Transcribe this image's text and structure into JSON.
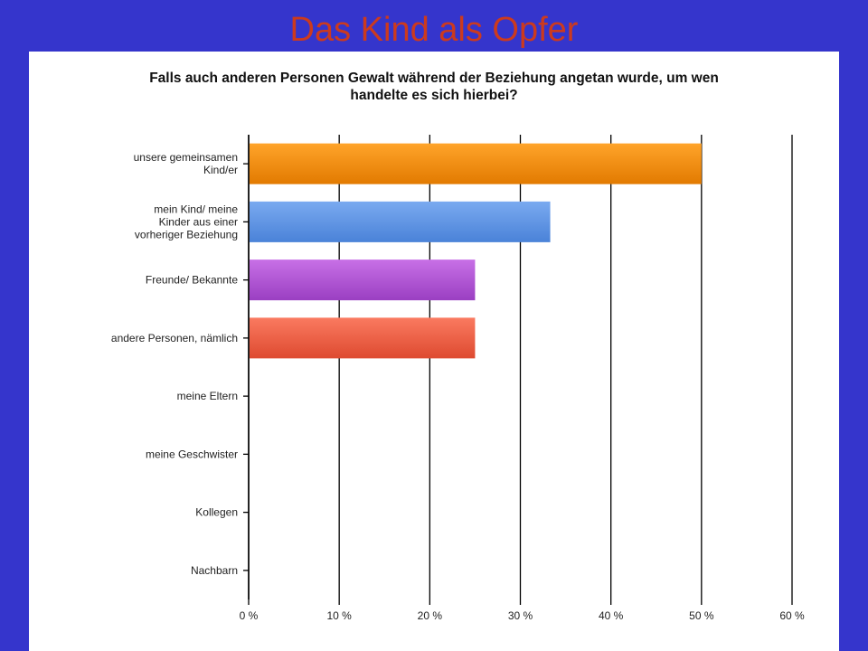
{
  "slide": {
    "title": "Das Kind als Opfer"
  },
  "chart_data": {
    "type": "bar",
    "orientation": "horizontal",
    "title": "Falls auch anderen Personen Gewalt während der Beziehung angetan wurde, um wen handelte es sich hierbei?",
    "title_lines": [
      "Falls auch anderen Personen Gewalt während der Beziehung angetan wurde, um wen",
      "handelte es sich hierbei?"
    ],
    "categories": [
      [
        "unsere gemeinsamen",
        "Kind/er"
      ],
      [
        "mein Kind/ meine",
        "Kinder aus einer",
        "vorheriger Beziehung"
      ],
      [
        "Freunde/ Bekannte"
      ],
      [
        "andere Personen, nämlich"
      ],
      [
        "meine Eltern"
      ],
      [
        "meine Geschwister"
      ],
      [
        "Kollegen"
      ],
      [
        "Nachbarn"
      ]
    ],
    "values": [
      50,
      33.3,
      25,
      25,
      0,
      0,
      0,
      0
    ],
    "bar_colors": [
      [
        "#ffa42a",
        "#e27a00"
      ],
      [
        "#7aaaf0",
        "#4a82d8"
      ],
      [
        "#c870e6",
        "#9a3fc2"
      ],
      [
        "#fa7a60",
        "#de4a30"
      ],
      [
        "#999999",
        "#777777"
      ],
      [
        "#999999",
        "#777777"
      ],
      [
        "#999999",
        "#777777"
      ],
      [
        "#999999",
        "#777777"
      ]
    ],
    "xlim": [
      0,
      60
    ],
    "xticks": [
      0,
      10,
      20,
      30,
      40,
      50,
      60
    ],
    "xtick_labels": [
      "0 %",
      "10 %",
      "20 %",
      "30 %",
      "40 %",
      "50 %",
      "60 %"
    ],
    "grid": true,
    "legend": "none"
  }
}
